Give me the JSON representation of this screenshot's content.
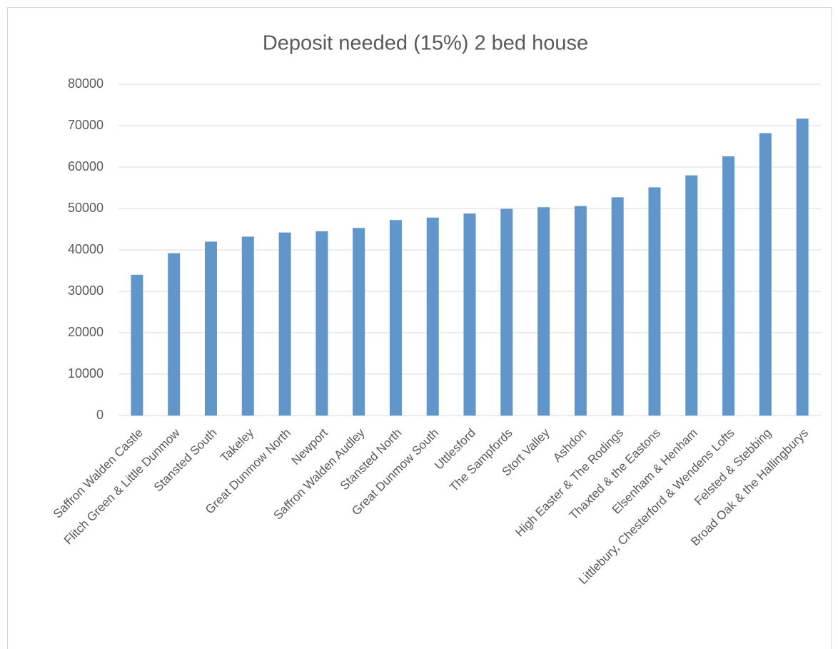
{
  "chart_data": {
    "type": "bar",
    "title": "Deposit needed (15%) 2 bed house",
    "categories": [
      "Saffron Walden Castle",
      "Flitch Green & Little Dunmow",
      "Stansted South",
      "Takeley",
      "Great Dunmow North",
      "Newport",
      "Saffron Walden Audley",
      "Stansted North",
      "Great Dunmow South",
      "Uttlesford",
      "The Sampfords",
      "Stort Valley",
      "Ashdon",
      "High Easter & The Rodings",
      "Thaxted & the Eastons",
      "Elsenham & Henham",
      "Littlebury, Chesterford & Wendens Lofts",
      "Felsted & Stebbing",
      "Broad Oak & the Hallingburys"
    ],
    "values": [
      34000,
      39200,
      42000,
      43200,
      44200,
      44500,
      45300,
      47200,
      47800,
      48800,
      49900,
      50300,
      50600,
      52700,
      55100,
      58000,
      62600,
      68200,
      71700
    ],
    "color": "#6096c9",
    "ylim": [
      0,
      80000
    ],
    "yticks": [
      0,
      10000,
      20000,
      30000,
      40000,
      50000,
      60000,
      70000,
      80000
    ],
    "grid": true
  }
}
